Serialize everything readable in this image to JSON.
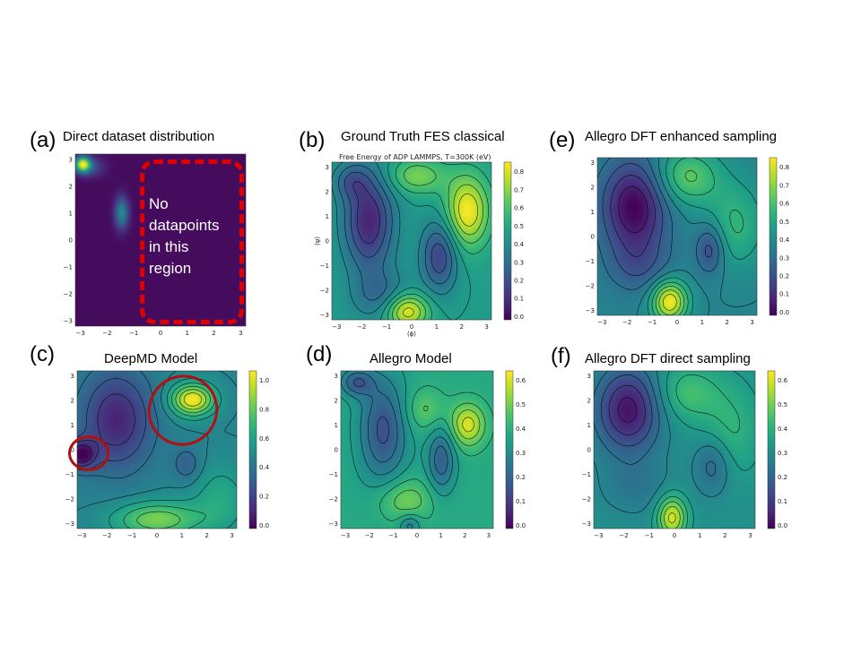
{
  "panels": [
    {
      "letter": "(a)",
      "title": "Direct dataset distribution",
      "kind": "dataset",
      "colorbar": false,
      "xticks": [
        "−3",
        "−2",
        "−1",
        "0",
        "1",
        "2",
        "3"
      ],
      "yticks": [
        "3",
        "2",
        "1",
        "0",
        "−1",
        "−2",
        "−3"
      ]
    },
    {
      "letter": "(b)",
      "title": "Ground Truth FES classical",
      "subtitle": "Free Energy of ADP LAMMPS, T=300K (eV)",
      "xlabel": "(ϕ)",
      "ylabel": "(ψ)",
      "kind": "fes_b",
      "colorbar": true,
      "cbticks": [
        "0.8",
        "0.7",
        "0.6",
        "0.5",
        "0.4",
        "0.3",
        "0.2",
        "0.1",
        "0.0"
      ],
      "xticks": [
        "−3",
        "−2",
        "−1",
        "0",
        "1",
        "2",
        "3"
      ],
      "yticks": [
        "3",
        "2",
        "1",
        "0",
        "−1",
        "−2",
        "−3"
      ]
    },
    {
      "letter": "(e)",
      "title": "Allegro DFT enhanced sampling",
      "kind": "fes_e",
      "colorbar": true,
      "cbticks": [
        "0.8",
        "0.7",
        "0.6",
        "0.5",
        "0.4",
        "0.3",
        "0.2",
        "0.1",
        "0.0"
      ],
      "xticks": [
        "−3",
        "−2",
        "−1",
        "0",
        "1",
        "2",
        "3"
      ],
      "yticks": [
        "3",
        "2",
        "1",
        "0",
        "−1",
        "−2",
        "−3"
      ]
    },
    {
      "letter": "(c)",
      "title": "DeepMD Model",
      "kind": "fes_c",
      "colorbar": true,
      "cbticks": [
        "1.0",
        "0.8",
        "0.6",
        "0.4",
        "0.2",
        "0.0"
      ],
      "xticks": [
        "−3",
        "−2",
        "−1",
        "0",
        "1",
        "2",
        "3"
      ],
      "yticks": [
        "3",
        "2",
        "1",
        "0",
        "−1",
        "−2",
        "−3"
      ]
    },
    {
      "letter": "(d)",
      "title": "Allegro Model",
      "kind": "fes_d",
      "colorbar": true,
      "cbticks": [
        "0.6",
        "0.5",
        "0.4",
        "0.3",
        "0.2",
        "0.1",
        "0.0"
      ],
      "xticks": [
        "−3",
        "−2",
        "−1",
        "0",
        "1",
        "2",
        "3"
      ],
      "yticks": [
        "3",
        "2",
        "1",
        "0",
        "−1",
        "−2",
        "−3"
      ]
    },
    {
      "letter": "(f)",
      "title": "Allegro DFT direct sampling",
      "kind": "fes_f",
      "colorbar": true,
      "cbticks": [
        "0.6",
        "0.5",
        "0.4",
        "0.3",
        "0.2",
        "0.1",
        "0.0"
      ],
      "xticks": [
        "−3",
        "−2",
        "−1",
        "0",
        "1",
        "2",
        "3"
      ],
      "yticks": [
        "3",
        "2",
        "1",
        "0",
        "−1",
        "−2",
        "−3"
      ]
    }
  ],
  "annotation": {
    "line1": "No",
    "line2": "datapoints",
    "line3": "in this",
    "line4": "region"
  },
  "colors": {
    "highlight_red": "#e00000",
    "circle_red": "#b01010",
    "viridis_dark": "#440154",
    "viridis_yellow": "#fde725"
  }
}
